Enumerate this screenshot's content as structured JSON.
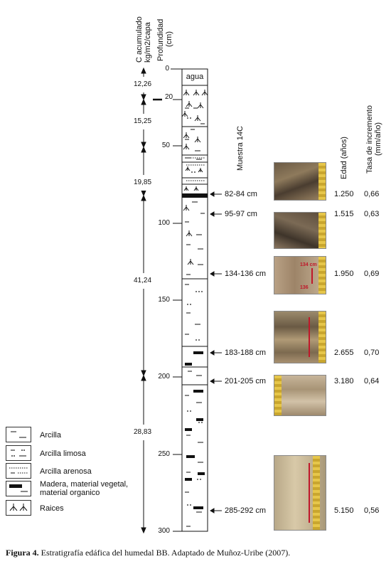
{
  "header": {
    "carbon_label_line1": "C acumulado",
    "carbon_label_line2": "kg/m2/capa",
    "depth_label_line1": "Profundidad",
    "depth_label_line2": "(cm)",
    "sample_label": "Muestra 14C",
    "age_label": "Edad (años)",
    "rate_label_line1": "Tasa de incremento",
    "rate_label_line2": "(mm/año)"
  },
  "column": {
    "top_layer": "agua"
  },
  "depth_ticks": [
    "0",
    "20",
    "50",
    "100",
    "150",
    "200",
    "250",
    "300"
  ],
  "carbon_values": [
    "12,26",
    "15,25",
    "19,85",
    "41,24",
    "28,83"
  ],
  "samples": [
    {
      "depth": "82-84 cm",
      "age": "1.250",
      "rate": "0,66"
    },
    {
      "depth": "95-97 cm",
      "age": "1.515",
      "rate": "0,63"
    },
    {
      "depth": "134-136 cm",
      "age": "1.950",
      "rate": "0,69"
    },
    {
      "depth": "183-188 cm",
      "age": "2.655",
      "rate": "0,70"
    },
    {
      "depth": "201-205 cm",
      "age": "3.180",
      "rate": "0,64"
    },
    {
      "depth": "285-292 cm",
      "age": "5.150",
      "rate": "0,56"
    }
  ],
  "photo_annotations": {
    "photo3_top": "134 cm",
    "photo3_bottom": "136"
  },
  "legend": [
    {
      "label": "Arcilla",
      "icon": "clay-pattern-icon"
    },
    {
      "label": "Arcilla limosa",
      "icon": "silty-clay-pattern-icon"
    },
    {
      "label": "Arcilla arenosa",
      "icon": "sandy-clay-pattern-icon"
    },
    {
      "label": "Madera, material vegetal,",
      "label2": "material organico",
      "icon": "wood-pattern-icon"
    },
    {
      "label": "Raices",
      "icon": "roots-pattern-icon"
    }
  ],
  "caption": {
    "bold": "Figura 4.",
    "text": " Estratigrafía edáfica del humedal BB. Adaptado de Muñoz-Uribe (2007)."
  }
}
